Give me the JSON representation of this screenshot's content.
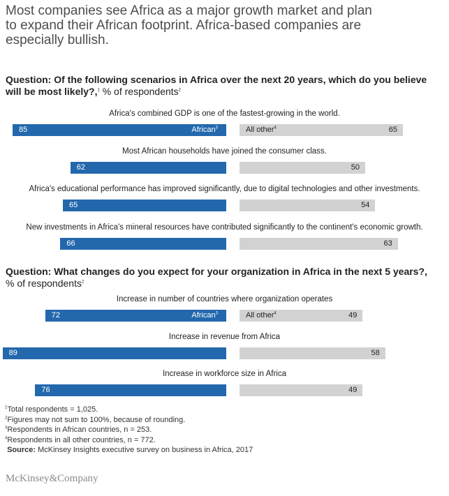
{
  "title": {
    "lines": [
      "Most companies see Africa as a major growth market and plan",
      "to expand their African footprint. Africa-based companies are",
      "especially bullish."
    ]
  },
  "colors": {
    "african": "#2368ad",
    "other": "#d2d2d2"
  },
  "chart_data": [
    {
      "type": "bar",
      "orientation": "horizontal-butterfly",
      "question_bold_1": "Question: Of the following scenarios in Africa over the next 20 years, which do you believe",
      "question_bold_2": "will be most likely?,",
      "question_note": "1",
      "question_unit": " % of respondents",
      "question_unit_note": "2",
      "african_label": "African",
      "african_note": "3",
      "other_label": "All other",
      "other_note": "4",
      "categories": [
        "Africa's combined GDP is one of the fastest-growing in the world.",
        "Most African households have joined the consumer class.",
        "Africa's educational performance has improved significantly, due to digital technologies and other investments.",
        "New investments in Africa's mineral resources have contributed significantly to the continent's economic growth."
      ],
      "series": [
        {
          "name": "African",
          "values": [
            85,
            62,
            65,
            66
          ]
        },
        {
          "name": "All other",
          "values": [
            65,
            50,
            54,
            63
          ]
        }
      ],
      "xlim": [
        0,
        100
      ]
    },
    {
      "type": "bar",
      "orientation": "horizontal-butterfly",
      "question_bold_1": "Question: What changes do you expect for your organization in Africa in the next 5 years?,",
      "question_unit": "% of respondents",
      "question_unit_note": "2",
      "african_label": "African",
      "african_note": "3",
      "other_label": "All other",
      "other_note": "4",
      "categories": [
        "Increase in number of countries where organization operates",
        "Increase in revenue from Africa",
        "Increase in workforce size in Africa"
      ],
      "series": [
        {
          "name": "African",
          "values": [
            72,
            89,
            76
          ]
        },
        {
          "name": "All other",
          "values": [
            49,
            58,
            49
          ]
        }
      ],
      "xlim": [
        0,
        100
      ]
    }
  ],
  "footnotes": [
    {
      "mark": "1",
      "text": "Total respondents = 1,025."
    },
    {
      "mark": "2",
      "text": "Figures may not sum to 100%, because of rounding."
    },
    {
      "mark": "3",
      "text": "Respondents in African countries, n = 253."
    },
    {
      "mark": "4",
      "text": "Respondents in all other countries, n = 772."
    }
  ],
  "source": {
    "label": "Source:",
    "text": "McKinsey Insights executive survey on business in Africa, 2017"
  },
  "logo": "McKinsey&Company"
}
